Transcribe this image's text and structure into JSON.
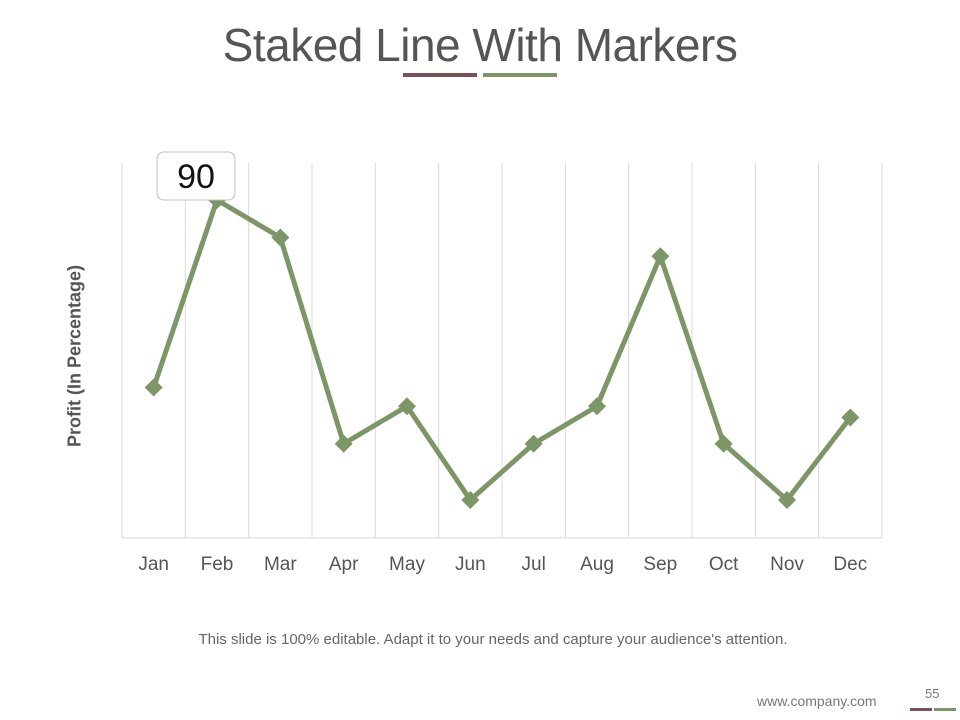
{
  "slide": {
    "title": "Staked Line With Markers",
    "caption": "This slide is 100% editable. Adapt it to your needs and capture your audience's attention.",
    "footer_url": "www.company.com",
    "page_number": "55"
  },
  "colors": {
    "series": "#7d9668",
    "accent_maroon": "#7a4f55",
    "accent_green": "#7d9668",
    "grid": "#d9d9d9",
    "text": "#555555"
  },
  "chart_data": {
    "type": "line",
    "title": "",
    "xlabel": "",
    "ylabel": "Profit (In Percentage)",
    "categories": [
      "Jan",
      "Feb",
      "Mar",
      "Apr",
      "May",
      "Jun",
      "Jul",
      "Aug",
      "Sep",
      "Oct",
      "Nov",
      "Dec"
    ],
    "series": [
      {
        "values": [
          40,
          90,
          80,
          25,
          35,
          10,
          25,
          35,
          75,
          25,
          10,
          32
        ]
      }
    ],
    "ylim": [
      0,
      100
    ],
    "y_axis_visible": false,
    "grid": "vertical",
    "markers": "diamond",
    "data_labels": [
      {
        "category": "Feb",
        "value": "90"
      }
    ]
  }
}
